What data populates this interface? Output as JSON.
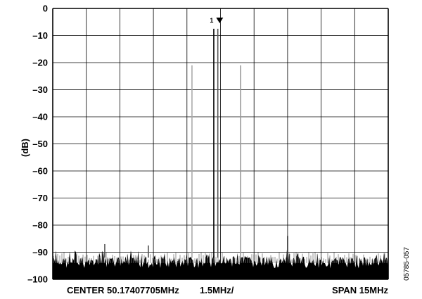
{
  "chart_data": {
    "type": "line",
    "title": "",
    "xlabel": "",
    "ylabel": "(dB)",
    "ylim": [
      -100,
      0
    ],
    "y_ticks": [
      "0",
      "–10",
      "–20",
      "–30",
      "–40",
      "–50",
      "–60",
      "–70",
      "–80",
      "–90",
      "–100"
    ],
    "x_divisions": 10,
    "grid": true,
    "center_label": "CENTER 50.17407705MHz",
    "per_div_label": "1.5MHz/",
    "span_label": "SPAN 15MHz",
    "figure_id": "05785-057",
    "marker": {
      "label": "1",
      "x_div": 4.85,
      "y": -7
    },
    "series": [
      {
        "peaks": [
          {
            "x_div": 4.15,
            "y": -21,
            "color": "#aaaaaa"
          },
          {
            "x_div": 4.8,
            "y": -7.5,
            "color": "#000000"
          },
          {
            "x_div": 4.92,
            "y": -7.5,
            "color": "#555555"
          },
          {
            "x_div": 5.6,
            "y": -21,
            "color": "#999999"
          },
          {
            "x_div": 7.0,
            "y": -84,
            "color": "#333333"
          },
          {
            "x_div": 1.55,
            "y": -87,
            "color": "#555555"
          },
          {
            "x_div": 2.85,
            "y": -87.5,
            "color": "#555555"
          }
        ],
        "noise_floor": {
          "y_top": -91,
          "y_bottom": -100
        }
      }
    ],
    "colors": {
      "trace": "#000000",
      "grid": "#000000"
    }
  }
}
